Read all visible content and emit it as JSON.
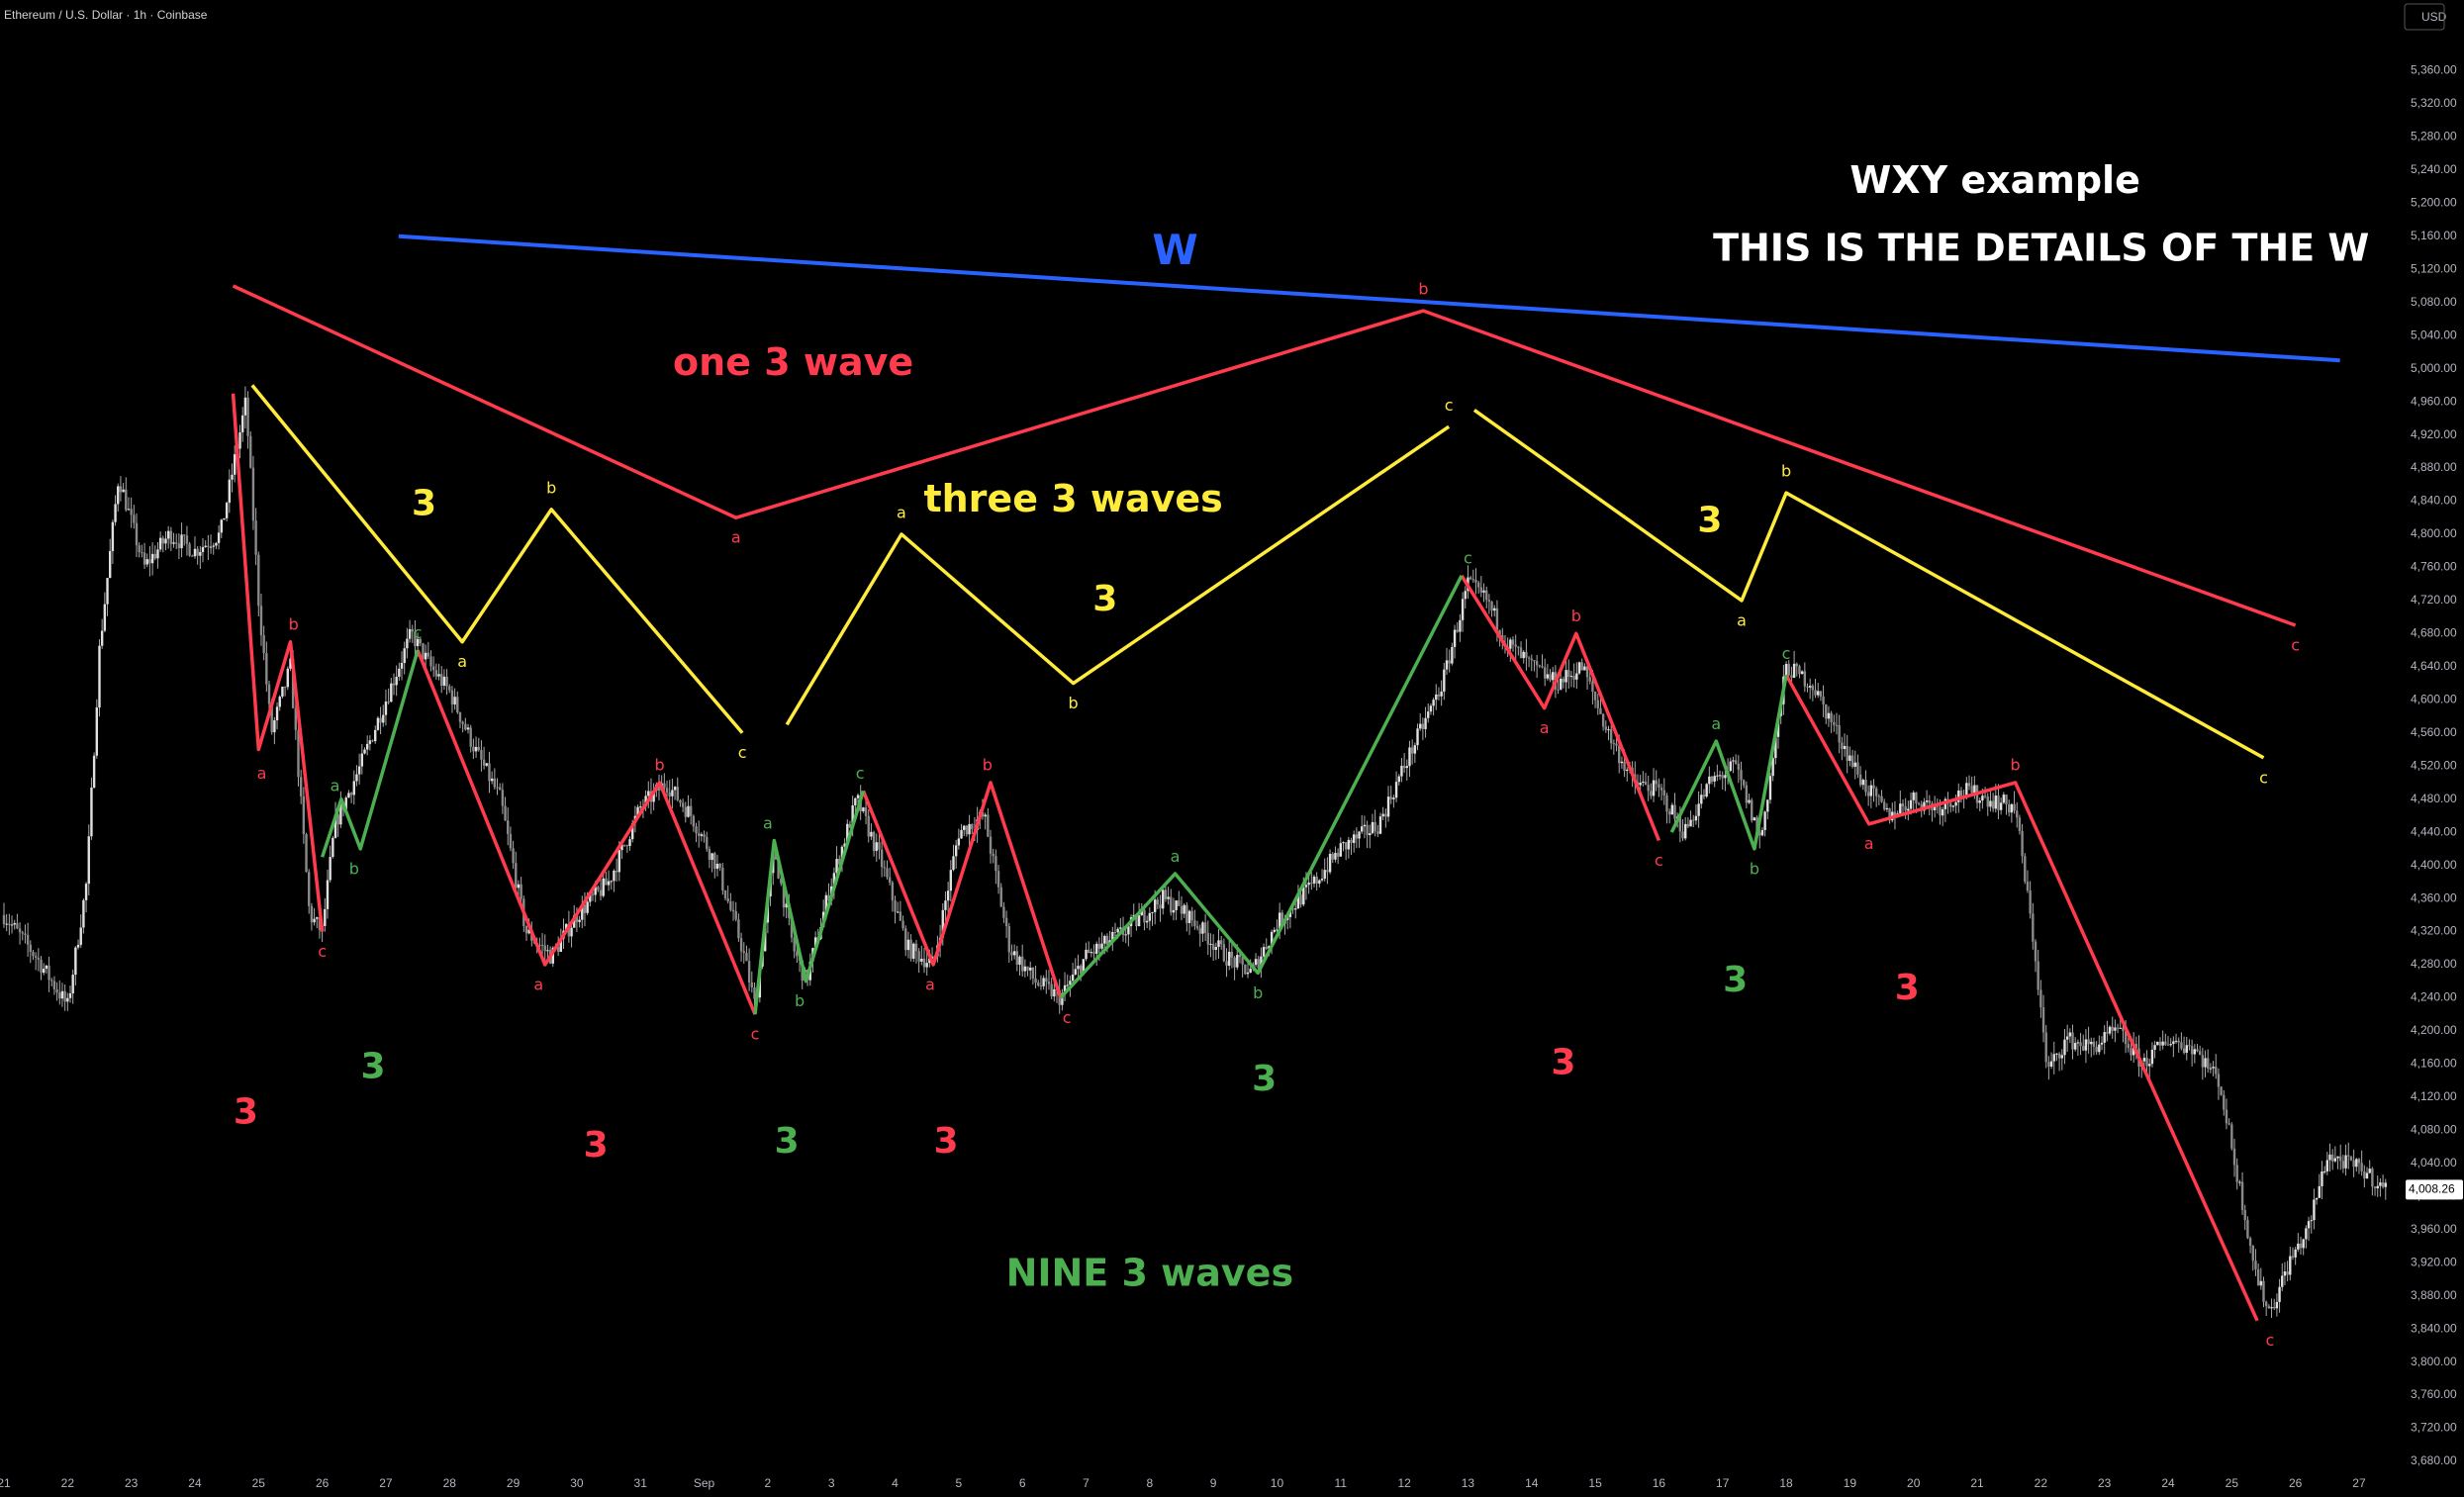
{
  "header": {
    "symbol_line": "Ethereum / U.S. Dollar · 1h · Coinbase"
  },
  "colors": {
    "red": "#ff3b4d",
    "green": "#4caf50",
    "yellow": "#ffeb3b",
    "blue": "#2962ff",
    "candle": "#c8c8c8",
    "white": "#ffffff",
    "axis_text": "#b2b5be",
    "last_price_bg": "#ffffff"
  },
  "chart_data": {
    "type": "line",
    "title": "",
    "currency": "USD",
    "last_price": "4,008.26",
    "ylim": [
      3680,
      5400
    ],
    "y_ticks": [
      "5,360.00",
      "5,320.00",
      "5,280.00",
      "5,240.00",
      "5,200.00",
      "5,160.00",
      "5,120.00",
      "5,080.00",
      "5,040.00",
      "5,000.00",
      "4,960.00",
      "4,920.00",
      "4,880.00",
      "4,840.00",
      "4,800.00",
      "4,760.00",
      "4,720.00",
      "4,680.00",
      "4,640.00",
      "4,600.00",
      "4,560.00",
      "4,520.00",
      "4,480.00",
      "4,440.00",
      "4,400.00",
      "4,360.00",
      "4,320.00",
      "4,280.00",
      "4,240.00",
      "4,200.00",
      "4,160.00",
      "4,120.00",
      "4,080.00",
      "4,040.00",
      "4,000.00",
      "3,960.00",
      "3,920.00",
      "3,880.00",
      "3,840.00",
      "3,800.00",
      "3,760.00",
      "3,720.00",
      "3,680.00"
    ],
    "x_ticks": [
      "21",
      "22",
      "23",
      "24",
      "25",
      "26",
      "27",
      "28",
      "29",
      "30",
      "31",
      "Sep",
      "2",
      "3",
      "4",
      "5",
      "6",
      "7",
      "8",
      "9",
      "10",
      "11",
      "12",
      "13",
      "14",
      "15",
      "16",
      "17",
      "18",
      "19",
      "20",
      "21",
      "22",
      "23",
      "24",
      "25",
      "26",
      "27"
    ],
    "x_days": [
      0,
      1,
      2,
      3,
      4,
      5,
      6,
      7,
      8,
      9,
      10,
      11,
      12,
      13,
      14,
      15,
      16,
      17,
      18,
      19,
      20,
      21,
      22,
      23,
      24,
      25,
      26,
      27,
      28,
      29,
      30,
      31,
      32,
      33,
      34,
      35,
      36,
      37
    ],
    "x_range": [
      0,
      37.7
    ],
    "price_path": [
      [
        0,
        4340
      ],
      [
        0.5,
        4290
      ],
      [
        1.0,
        4230
      ],
      [
        1.3,
        4380
      ],
      [
        1.5,
        4660
      ],
      [
        1.8,
        4870
      ],
      [
        2.2,
        4760
      ],
      [
        2.6,
        4800
      ],
      [
        3.0,
        4780
      ],
      [
        3.4,
        4800
      ],
      [
        3.6,
        4880
      ],
      [
        3.8,
        4960
      ],
      [
        4.0,
        4720
      ],
      [
        4.2,
        4560
      ],
      [
        4.5,
        4640
      ],
      [
        4.8,
        4340
      ],
      [
        5.0,
        4320
      ],
      [
        5.2,
        4450
      ],
      [
        5.6,
        4520
      ],
      [
        6.0,
        4600
      ],
      [
        6.4,
        4680
      ],
      [
        6.7,
        4640
      ],
      [
        7.0,
        4610
      ],
      [
        7.4,
        4540
      ],
      [
        7.8,
        4480
      ],
      [
        8.2,
        4320
      ],
      [
        8.6,
        4290
      ],
      [
        9.0,
        4340
      ],
      [
        9.5,
        4380
      ],
      [
        10.0,
        4470
      ],
      [
        10.4,
        4500
      ],
      [
        10.8,
        4460
      ],
      [
        11.2,
        4400
      ],
      [
        11.6,
        4300
      ],
      [
        11.8,
        4230
      ],
      [
        12.1,
        4420
      ],
      [
        12.4,
        4300
      ],
      [
        12.6,
        4260
      ],
      [
        13.0,
        4380
      ],
      [
        13.4,
        4480
      ],
      [
        13.8,
        4400
      ],
      [
        14.2,
        4300
      ],
      [
        14.6,
        4280
      ],
      [
        15.0,
        4440
      ],
      [
        15.4,
        4460
      ],
      [
        15.8,
        4300
      ],
      [
        16.2,
        4260
      ],
      [
        16.6,
        4240
      ],
      [
        17.0,
        4290
      ],
      [
        17.6,
        4320
      ],
      [
        18.2,
        4360
      ],
      [
        18.6,
        4340
      ],
      [
        19.2,
        4290
      ],
      [
        19.6,
        4270
      ],
      [
        20.0,
        4330
      ],
      [
        20.6,
        4380
      ],
      [
        21.0,
        4420
      ],
      [
        21.6,
        4450
      ],
      [
        22.0,
        4520
      ],
      [
        22.6,
        4620
      ],
      [
        23.0,
        4740
      ],
      [
        23.3,
        4720
      ],
      [
        23.6,
        4670
      ],
      [
        24.0,
        4640
      ],
      [
        24.4,
        4620
      ],
      [
        24.8,
        4640
      ],
      [
        25.2,
        4560
      ],
      [
        25.6,
        4500
      ],
      [
        26.0,
        4490
      ],
      [
        26.4,
        4440
      ],
      [
        26.8,
        4500
      ],
      [
        27.2,
        4520
      ],
      [
        27.6,
        4430
      ],
      [
        28.0,
        4640
      ],
      [
        28.4,
        4620
      ],
      [
        28.8,
        4560
      ],
      [
        29.2,
        4500
      ],
      [
        29.6,
        4460
      ],
      [
        30.0,
        4480
      ],
      [
        30.4,
        4470
      ],
      [
        30.8,
        4490
      ],
      [
        31.2,
        4480
      ],
      [
        31.6,
        4470
      ],
      [
        31.9,
        4300
      ],
      [
        32.1,
        4150
      ],
      [
        32.4,
        4190
      ],
      [
        32.8,
        4180
      ],
      [
        33.2,
        4200
      ],
      [
        33.6,
        4160
      ],
      [
        34.0,
        4190
      ],
      [
        34.4,
        4180
      ],
      [
        34.8,
        4140
      ],
      [
        35.1,
        4020
      ],
      [
        35.4,
        3900
      ],
      [
        35.6,
        3860
      ],
      [
        35.9,
        3920
      ],
      [
        36.2,
        3960
      ],
      [
        36.5,
        4050
      ],
      [
        36.8,
        4040
      ],
      [
        37.1,
        4030
      ],
      [
        37.4,
        4008
      ]
    ],
    "red_waves": [
      [
        [
          3.6,
          4970
        ],
        [
          4.0,
          4540
        ],
        [
          4.5,
          4670
        ],
        [
          5.0,
          4320
        ]
      ],
      [
        [
          6.5,
          4660
        ],
        [
          8.5,
          4280
        ],
        [
          10.3,
          4500
        ],
        [
          11.8,
          4220
        ]
      ],
      [
        [
          13.5,
          4490
        ],
        [
          14.6,
          4280
        ],
        [
          15.5,
          4500
        ],
        [
          16.6,
          4240
        ]
      ],
      [
        [
          22.9,
          4750
        ],
        [
          24.2,
          4590
        ],
        [
          24.7,
          4680
        ],
        [
          26.0,
          4430
        ]
      ],
      [
        [
          28.0,
          4630
        ],
        [
          29.3,
          4450
        ],
        [
          31.6,
          4500
        ],
        [
          35.4,
          3850
        ]
      ]
    ],
    "green_waves": [
      [
        [
          5.0,
          4410
        ],
        [
          5.3,
          4480
        ],
        [
          5.6,
          4420
        ],
        [
          6.5,
          4660
        ]
      ],
      [
        [
          11.8,
          4220
        ],
        [
          12.1,
          4430
        ],
        [
          12.6,
          4260
        ],
        [
          13.5,
          4490
        ]
      ],
      [
        [
          16.6,
          4240
        ],
        [
          18.4,
          4390
        ],
        [
          19.7,
          4270
        ],
        [
          22.9,
          4750
        ]
      ],
      [
        [
          26.2,
          4440
        ],
        [
          26.9,
          4550
        ],
        [
          27.5,
          4420
        ],
        [
          28.0,
          4630
        ]
      ]
    ],
    "yellow_waves": [
      [
        [
          3.9,
          4980
        ],
        [
          7.2,
          4670
        ],
        [
          8.6,
          4830
        ],
        [
          11.6,
          4560
        ]
      ],
      [
        [
          12.3,
          4570
        ],
        [
          14.1,
          4800
        ],
        [
          16.8,
          4620
        ],
        [
          22.7,
          4930
        ]
      ],
      [
        [
          23.1,
          4950
        ],
        [
          27.3,
          4720
        ],
        [
          28.0,
          4850
        ],
        [
          35.5,
          4530
        ]
      ]
    ],
    "red_big_wave": [
      [
        3.6,
        5100
      ],
      [
        11.5,
        4820
      ],
      [
        22.3,
        5070
      ],
      [
        36.0,
        4690
      ]
    ],
    "blue_line": [
      [
        6.2,
        5160
      ],
      [
        36.7,
        5010
      ]
    ],
    "point_labels": [
      {
        "t": "a",
        "c": "red",
        "x": 4.05,
        "y": 4510
      },
      {
        "t": "b",
        "c": "red",
        "x": 4.55,
        "y": 4690
      },
      {
        "t": "c",
        "c": "red",
        "x": 5.0,
        "y": 4295
      },
      {
        "t": "a",
        "c": "green",
        "x": 5.2,
        "y": 4495
      },
      {
        "t": "b",
        "c": "green",
        "x": 5.5,
        "y": 4395
      },
      {
        "t": "c",
        "c": "green",
        "x": 6.5,
        "y": 4680
      },
      {
        "t": "a",
        "c": "red",
        "x": 8.4,
        "y": 4255
      },
      {
        "t": "b",
        "c": "red",
        "x": 10.3,
        "y": 4520
      },
      {
        "t": "c",
        "c": "red",
        "x": 11.8,
        "y": 4195
      },
      {
        "t": "a",
        "c": "green",
        "x": 12.0,
        "y": 4450
      },
      {
        "t": "b",
        "c": "green",
        "x": 12.5,
        "y": 4235
      },
      {
        "t": "c",
        "c": "green",
        "x": 13.45,
        "y": 4510
      },
      {
        "t": "a",
        "c": "red",
        "x": 14.55,
        "y": 4255
      },
      {
        "t": "b",
        "c": "red",
        "x": 15.45,
        "y": 4520
      },
      {
        "t": "c",
        "c": "red",
        "x": 16.7,
        "y": 4215
      },
      {
        "t": "a",
        "c": "green",
        "x": 18.4,
        "y": 4410
      },
      {
        "t": "b",
        "c": "green",
        "x": 19.7,
        "y": 4245
      },
      {
        "t": "c",
        "c": "green",
        "x": 23.0,
        "y": 4770
      },
      {
        "t": "a",
        "c": "red",
        "x": 24.2,
        "y": 4565
      },
      {
        "t": "b",
        "c": "red",
        "x": 24.7,
        "y": 4700
      },
      {
        "t": "c",
        "c": "red",
        "x": 26.0,
        "y": 4405
      },
      {
        "t": "a",
        "c": "green",
        "x": 26.9,
        "y": 4570
      },
      {
        "t": "b",
        "c": "green",
        "x": 27.5,
        "y": 4395
      },
      {
        "t": "c",
        "c": "green",
        "x": 28.0,
        "y": 4655
      },
      {
        "t": "a",
        "c": "red",
        "x": 29.3,
        "y": 4425
      },
      {
        "t": "b",
        "c": "red",
        "x": 31.6,
        "y": 4520
      },
      {
        "t": "c",
        "c": "red",
        "x": 35.6,
        "y": 3825
      },
      {
        "t": "a",
        "c": "yellow",
        "x": 7.2,
        "y": 4645
      },
      {
        "t": "b",
        "c": "yellow",
        "x": 8.6,
        "y": 4855
      },
      {
        "t": "c",
        "c": "yellow",
        "x": 11.6,
        "y": 4535
      },
      {
        "t": "a",
        "c": "yellow",
        "x": 14.1,
        "y": 4825
      },
      {
        "t": "b",
        "c": "yellow",
        "x": 16.8,
        "y": 4595
      },
      {
        "t": "c",
        "c": "yellow",
        "x": 22.7,
        "y": 4955
      },
      {
        "t": "a",
        "c": "yellow",
        "x": 27.3,
        "y": 4695
      },
      {
        "t": "b",
        "c": "yellow",
        "x": 28.0,
        "y": 4875
      },
      {
        "t": "c",
        "c": "yellow",
        "x": 35.5,
        "y": 4505
      },
      {
        "t": "a",
        "c": "red",
        "x": 11.5,
        "y": 4795
      },
      {
        "t": "b",
        "c": "red",
        "x": 22.3,
        "y": 5095
      },
      {
        "t": "c",
        "c": "red",
        "x": 36.0,
        "y": 4665
      }
    ],
    "wave_count_labels": [
      {
        "t": "3",
        "c": "red",
        "x": 3.8,
        "y": 4100
      },
      {
        "t": "3",
        "c": "green",
        "x": 5.8,
        "y": 4155
      },
      {
        "t": "3",
        "c": "red",
        "x": 9.3,
        "y": 4060
      },
      {
        "t": "3",
        "c": "green",
        "x": 12.3,
        "y": 4065
      },
      {
        "t": "3",
        "c": "red",
        "x": 14.8,
        "y": 4065
      },
      {
        "t": "3",
        "c": "green",
        "x": 19.8,
        "y": 4140
      },
      {
        "t": "3",
        "c": "red",
        "x": 24.5,
        "y": 4160
      },
      {
        "t": "3",
        "c": "green",
        "x": 27.2,
        "y": 4260
      },
      {
        "t": "3",
        "c": "red",
        "x": 29.9,
        "y": 4250
      },
      {
        "t": "3",
        "c": "yellow",
        "x": 6.6,
        "y": 4835
      },
      {
        "t": "3",
        "c": "yellow",
        "x": 17.3,
        "y": 4720
      },
      {
        "t": "3",
        "c": "yellow",
        "x": 26.8,
        "y": 4815
      }
    ],
    "annotations": [
      {
        "t": "one 3 wave",
        "c": "red",
        "x": 12.4,
        "y": 5005,
        "size": 38
      },
      {
        "t": "three 3 waves",
        "c": "yellow",
        "x": 16.8,
        "y": 4840,
        "size": 38
      },
      {
        "t": "NINE 3 waves",
        "c": "green",
        "x": 18.0,
        "y": 3905,
        "size": 38
      },
      {
        "t": "W",
        "c": "blue",
        "x": 18.4,
        "y": 5140,
        "size": 42
      },
      {
        "t": "WXY example",
        "c": "white",
        "x": 29.0,
        "y": 5225,
        "size": 38,
        "anchor": "start"
      },
      {
        "t": "THIS IS THE DETAILS OF THE W",
        "c": "white",
        "x": 26.85,
        "y": 5143,
        "size": 38,
        "anchor": "start"
      }
    ]
  }
}
